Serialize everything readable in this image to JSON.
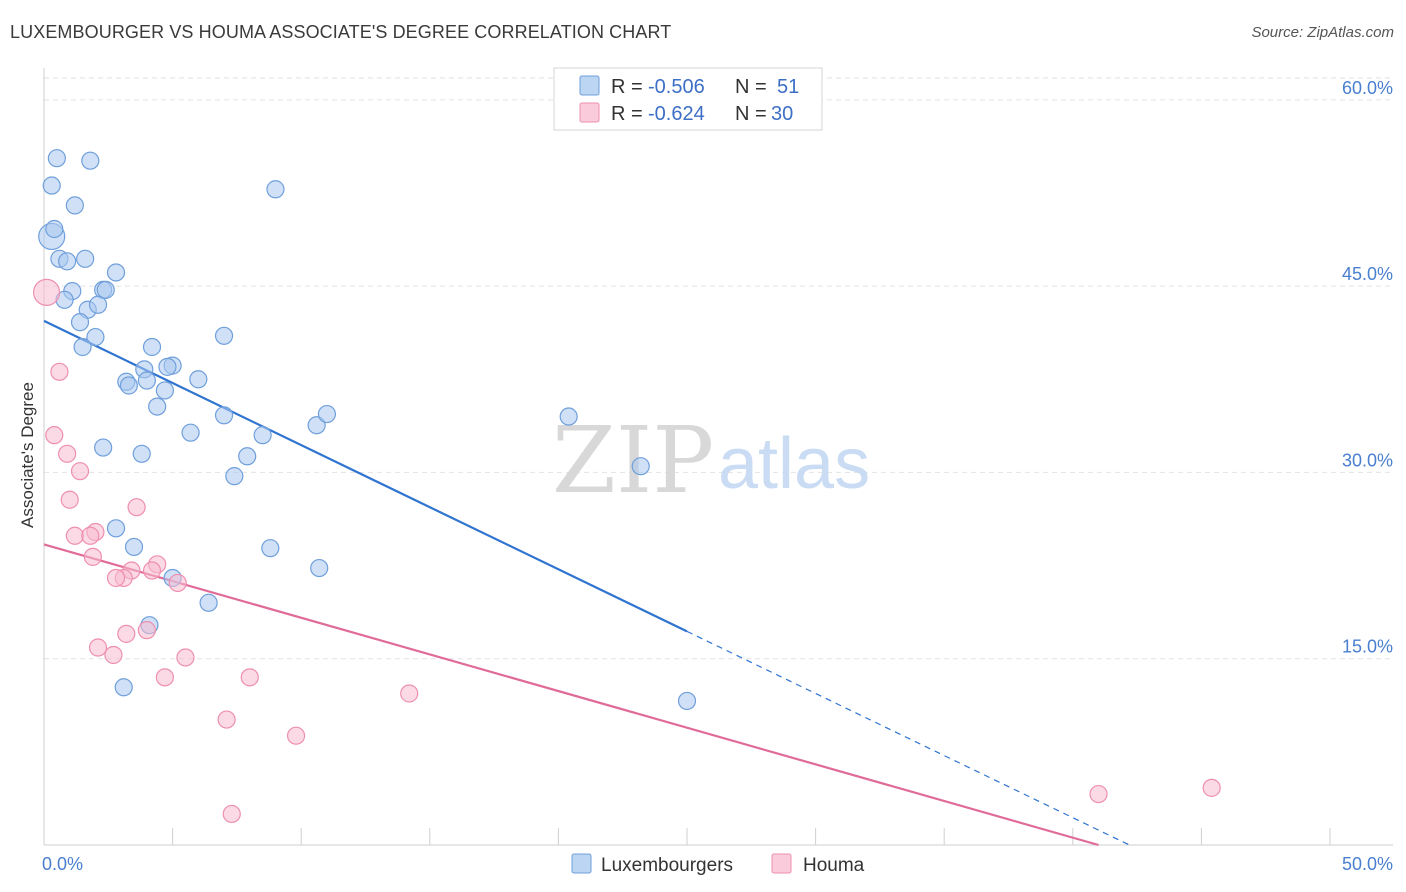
{
  "title": "LUXEMBOURGER VS HOUMA ASSOCIATE'S DEGREE CORRELATION CHART",
  "source": "Source: ZipAtlas.com",
  "watermark": {
    "zip": "ZIP",
    "atlas": "atlas"
  },
  "chart_data": {
    "type": "scatter",
    "ylabel": "Associate's Degree",
    "xlim": [
      0,
      50
    ],
    "ylim": [
      0,
      62
    ],
    "x_tick_labels": [
      {
        "value": 0,
        "label": "0.0%"
      },
      {
        "value": 50,
        "label": "50.0%"
      }
    ],
    "y_tick_labels": [
      {
        "value": 15,
        "label": "15.0%"
      },
      {
        "value": 30,
        "label": "30.0%"
      },
      {
        "value": 45,
        "label": "45.0%"
      },
      {
        "value": 60,
        "label": "60.0%"
      }
    ],
    "grid": true,
    "legend_position": "top-center",
    "series": [
      {
        "name": "Luxembourgers",
        "color": "#a9c8f0",
        "stroke": "#6f9fdb",
        "line_color": "#2f74d0",
        "r_label": "R =",
        "r_value": "-0.506",
        "n_label": "N =",
        "n_value": "51",
        "trend": {
          "x0": 0,
          "y0": 42.2,
          "x1": 25,
          "y1": 17.2,
          "dash_to_x": 42.3
        },
        "points": [
          [
            0.3,
            49
          ],
          [
            0.3,
            53.1
          ],
          [
            0.5,
            55.3
          ],
          [
            0.4,
            49.6
          ],
          [
            1.8,
            55.1
          ],
          [
            1.2,
            51.5
          ],
          [
            0.6,
            47.2
          ],
          [
            0.9,
            47
          ],
          [
            1.6,
            47.2
          ],
          [
            1.1,
            44.6
          ],
          [
            0.8,
            43.9
          ],
          [
            2.3,
            44.7
          ],
          [
            2.4,
            44.7
          ],
          [
            2.8,
            46.1
          ],
          [
            1.7,
            43.1
          ],
          [
            2.1,
            43.5
          ],
          [
            1.4,
            42.1
          ],
          [
            2.0,
            40.9
          ],
          [
            1.5,
            40.1
          ],
          [
            7.0,
            41
          ],
          [
            4.2,
            40.1
          ],
          [
            3.9,
            38.3
          ],
          [
            5.0,
            38.6
          ],
          [
            6.0,
            37.5
          ],
          [
            4.8,
            38.5
          ],
          [
            3.2,
            37.3
          ],
          [
            4.0,
            37.4
          ],
          [
            3.3,
            37.0
          ],
          [
            4.7,
            36.6
          ],
          [
            4.4,
            35.3
          ],
          [
            9.0,
            52.8
          ],
          [
            7.0,
            34.6
          ],
          [
            10.6,
            33.8
          ],
          [
            11.0,
            34.7
          ],
          [
            5.7,
            33.2
          ],
          [
            8.5,
            33.0
          ],
          [
            2.3,
            32.0
          ],
          [
            3.8,
            31.5
          ],
          [
            7.9,
            31.3
          ],
          [
            7.4,
            29.7
          ],
          [
            20.4,
            34.5
          ],
          [
            23.2,
            30.5
          ],
          [
            2.8,
            25.5
          ],
          [
            3.5,
            24.0
          ],
          [
            8.8,
            23.9
          ],
          [
            10.7,
            22.3
          ],
          [
            5.0,
            21.5
          ],
          [
            6.4,
            19.5
          ],
          [
            4.1,
            17.7
          ],
          [
            3.1,
            12.7
          ],
          [
            25.0,
            11.6
          ]
        ]
      },
      {
        "name": "Houma",
        "color": "#f7bcd0",
        "stroke": "#ee8fb0",
        "line_color": "#e06b98",
        "r_label": "R =",
        "r_value": "-0.624",
        "n_label": "N =",
        "n_value": "30",
        "trend": {
          "x0": 0,
          "y0": 24.2,
          "x1": 41.0,
          "y1": 0
        },
        "points": [
          [
            0.1,
            44.5
          ],
          [
            0.6,
            38.1
          ],
          [
            0.4,
            33.0
          ],
          [
            0.9,
            31.5
          ],
          [
            1.4,
            30.1
          ],
          [
            1.0,
            27.8
          ],
          [
            3.6,
            27.2
          ],
          [
            2.0,
            25.2
          ],
          [
            1.2,
            24.9
          ],
          [
            1.8,
            24.9
          ],
          [
            1.9,
            23.2
          ],
          [
            4.4,
            22.6
          ],
          [
            3.4,
            22.1
          ],
          [
            4.2,
            22.1
          ],
          [
            3.1,
            21.5
          ],
          [
            2.8,
            21.5
          ],
          [
            5.2,
            21.1
          ],
          [
            4.0,
            17.3
          ],
          [
            3.2,
            17.0
          ],
          [
            2.1,
            15.9
          ],
          [
            2.7,
            15.3
          ],
          [
            5.5,
            15.1
          ],
          [
            4.7,
            13.5
          ],
          [
            8.0,
            13.5
          ],
          [
            14.2,
            12.2
          ],
          [
            7.1,
            10.1
          ],
          [
            9.8,
            8.8
          ],
          [
            7.3,
            2.5
          ],
          [
            41.0,
            4.1
          ],
          [
            45.4,
            4.6
          ]
        ]
      }
    ]
  }
}
